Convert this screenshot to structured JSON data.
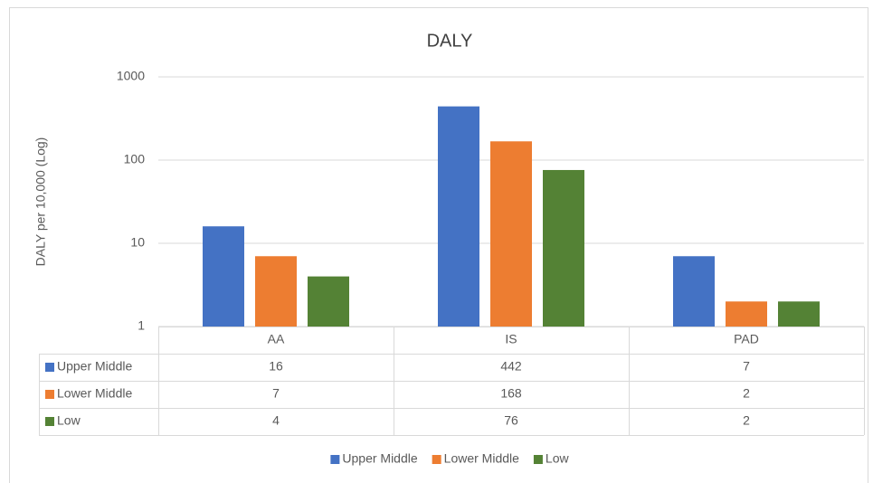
{
  "chart_data": {
    "type": "bar",
    "title": "DALY",
    "y_label": "DALY per 10,000 (Log)",
    "categories": [
      "AA",
      "IS",
      "PAD"
    ],
    "series": [
      {
        "name": "Upper Middle",
        "color": "#4472c4",
        "values": [
          16,
          442,
          7
        ]
      },
      {
        "name": "Lower Middle",
        "color": "#ed7d31",
        "values": [
          7,
          168,
          2
        ]
      },
      {
        "name": "Low",
        "color": "#548235",
        "values": [
          4,
          76,
          2
        ]
      }
    ],
    "ylim": [
      1,
      1000
    ],
    "yticks": [
      1,
      10,
      100,
      1000
    ],
    "log_y": true,
    "grid": true,
    "legend": "bottom"
  }
}
